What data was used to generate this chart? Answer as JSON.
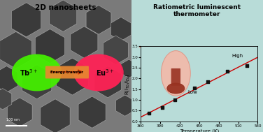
{
  "title_left": "2D nanosheets",
  "title_right": "Ratiometric luminescent\nthermometer",
  "bg_overall": "#f0c8b8",
  "bg_right": "#b8dcd8",
  "tb_label": "Tb$^{3+}$",
  "eu_label": "Eu$^{3+}$",
  "arrow_label": "Energy transfer",
  "tb_color": "#44ee00",
  "eu_color": "#ff2255",
  "scale_bar_label": "100 nm",
  "x_data_plot": [
    373,
    393,
    413,
    443,
    463,
    493,
    523
  ],
  "y_data_plot": [
    0.4,
    0.65,
    1.0,
    1.55,
    1.85,
    2.35,
    2.6
  ],
  "xlabel": "Temperature (K)",
  "ylabel": "R(I$_{Tb}$/I$_{Eu}$)",
  "xlim": [
    360,
    540
  ],
  "ylim": [
    0.0,
    3.5
  ],
  "xticks": [
    360,
    390,
    420,
    450,
    480,
    510,
    540
  ],
  "ytick_vals": [
    0.0,
    0.5,
    1.0,
    1.5,
    2.0,
    2.5,
    3.0,
    3.5
  ],
  "ytick_labels": [
    "0.0",
    "0.5",
    "1.0",
    "1.5",
    "2.0",
    "2.5",
    "3.0",
    "3.5"
  ],
  "line_color": "#cc0000",
  "marker_color": "#111111",
  "high_label": "High",
  "low_label": "Low",
  "therm_outer_color": "#f0a898",
  "therm_inner_color": "#aa4030",
  "arrow_curve_color": "#e0a090",
  "hex_bg_color": "#787878",
  "hex_dark": "#383838",
  "hex_light": "#aaaaaa",
  "hex_edge": "#888888"
}
